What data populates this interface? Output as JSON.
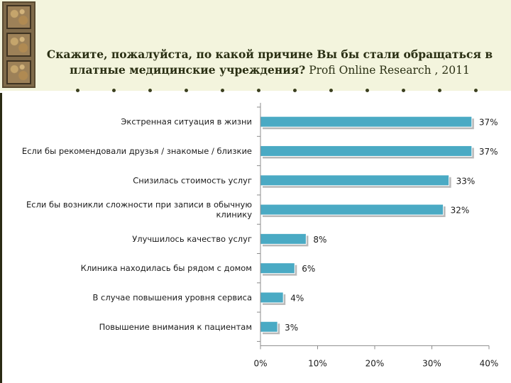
{
  "header": {
    "question": "Скажите, пожалуйста, по какой причине Вы бы стали обращаться в платные медицинские учреждения?",
    "source": "Profi Online Research , 2011"
  },
  "colors": {
    "bar": "#4aaac4",
    "header_bg": "#f3f4dd"
  },
  "chart_data": {
    "type": "bar",
    "orientation": "horizontal",
    "title": "Скажите, пожалуйста, по какой причине Вы бы стали обращаться в платные медицинские учреждения?",
    "categories": [
      [
        "Экстренная ситуация в жизни"
      ],
      [
        "Если бы рекомендовали друзья / знакомые / близкие"
      ],
      [
        "Снизилась стоимость услуг"
      ],
      [
        "Если бы возникли сложности при записи в обычную",
        "клинику"
      ],
      [
        "Улучшилось качество услуг"
      ],
      [
        "Клиника находилась бы рядом с домом"
      ],
      [
        "В случае повышения уровня сервиса"
      ],
      [
        "Повышение внимания к пациентам"
      ]
    ],
    "values": [
      37,
      37,
      33,
      32,
      8,
      6,
      4,
      3
    ],
    "value_labels": [
      "37%",
      "37%",
      "33%",
      "32%",
      "8%",
      "6%",
      "4%",
      "3%"
    ],
    "xlim": [
      0,
      40
    ],
    "xticks": [
      0,
      10,
      20,
      30,
      40
    ],
    "xtick_labels": [
      "0%",
      "10%",
      "20%",
      "30%",
      "40%"
    ],
    "xlabel": "",
    "ylabel": "",
    "grid": false,
    "legend": "none"
  }
}
